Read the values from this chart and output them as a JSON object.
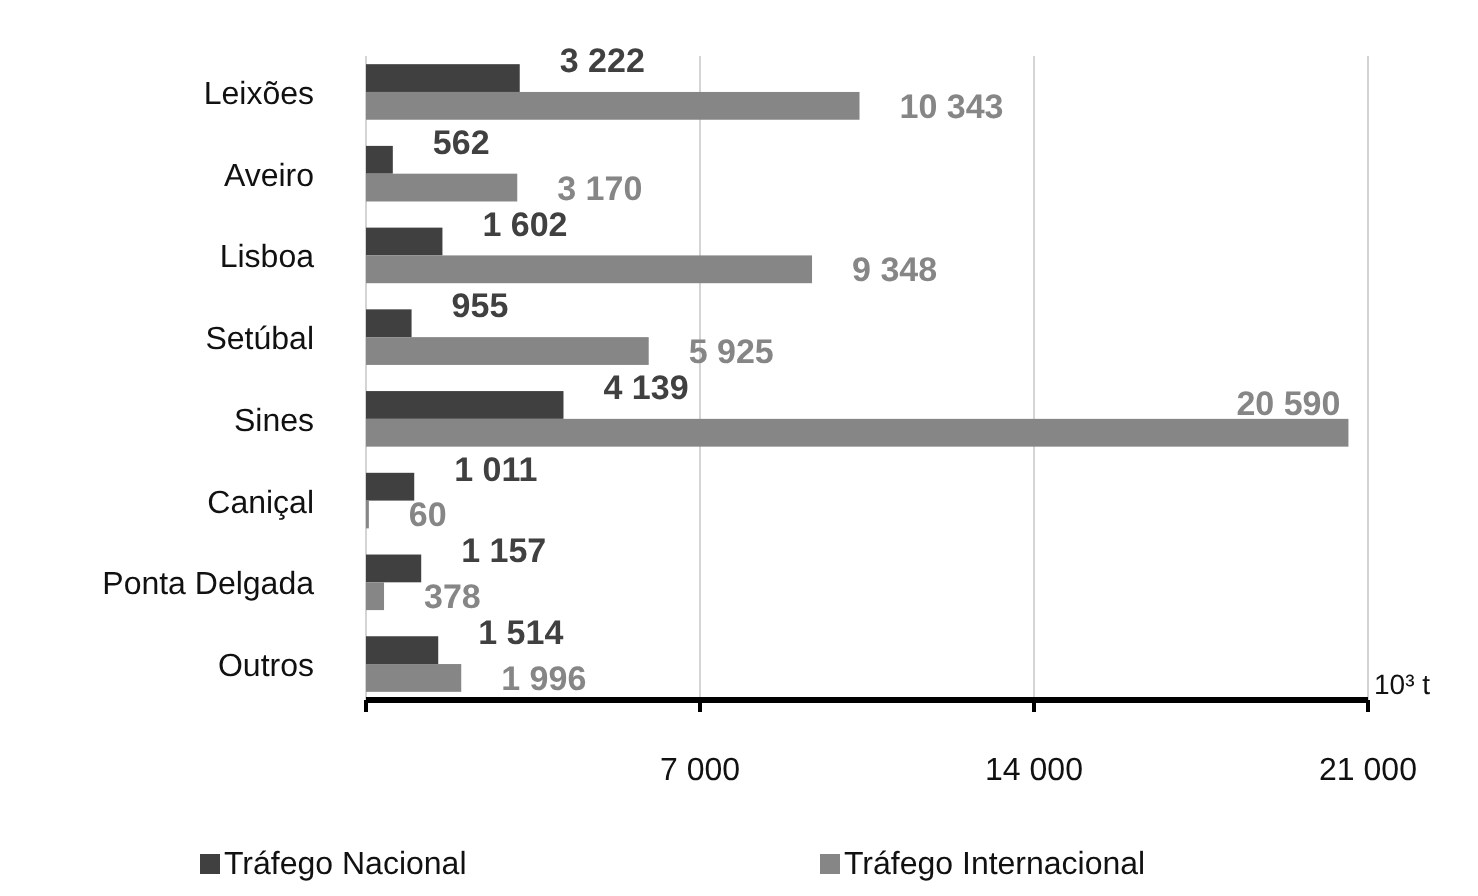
{
  "chart_data": {
    "type": "bar",
    "orientation": "horizontal",
    "xlabel": "10³ t",
    "categories": [
      "Leixões",
      "Aveiro",
      "Lisboa",
      "Setúbal",
      "Sines",
      "Caniçal",
      "Ponta Delgada",
      "Outros"
    ],
    "series": [
      {
        "name": "Tráfego Nacional",
        "color": "#404040",
        "values": [
          3222,
          562,
          1602,
          955,
          4139,
          1011,
          1157,
          1514
        ],
        "value_labels": [
          "3 222",
          "562",
          "1 602",
          "955",
          "4 139",
          "1 011",
          "1 157",
          "1 514"
        ]
      },
      {
        "name": "Tráfego Internacional",
        "color": "#868686",
        "values": [
          10343,
          3170,
          9348,
          5925,
          20590,
          60,
          378,
          1996
        ],
        "value_labels": [
          "10 343",
          "3 170",
          "9 348",
          "5 925",
          "20 590",
          "60",
          "378",
          "1 996"
        ]
      }
    ],
    "xlim": [
      0,
      21000
    ],
    "xticks": [
      {
        "value": 0,
        "label": null
      },
      {
        "value": 7000,
        "label": "7 000"
      },
      {
        "value": 14000,
        "label": "14 000"
      },
      {
        "value": 21000,
        "label": "21 000"
      }
    ],
    "grid": "x",
    "legend": "bottom"
  }
}
